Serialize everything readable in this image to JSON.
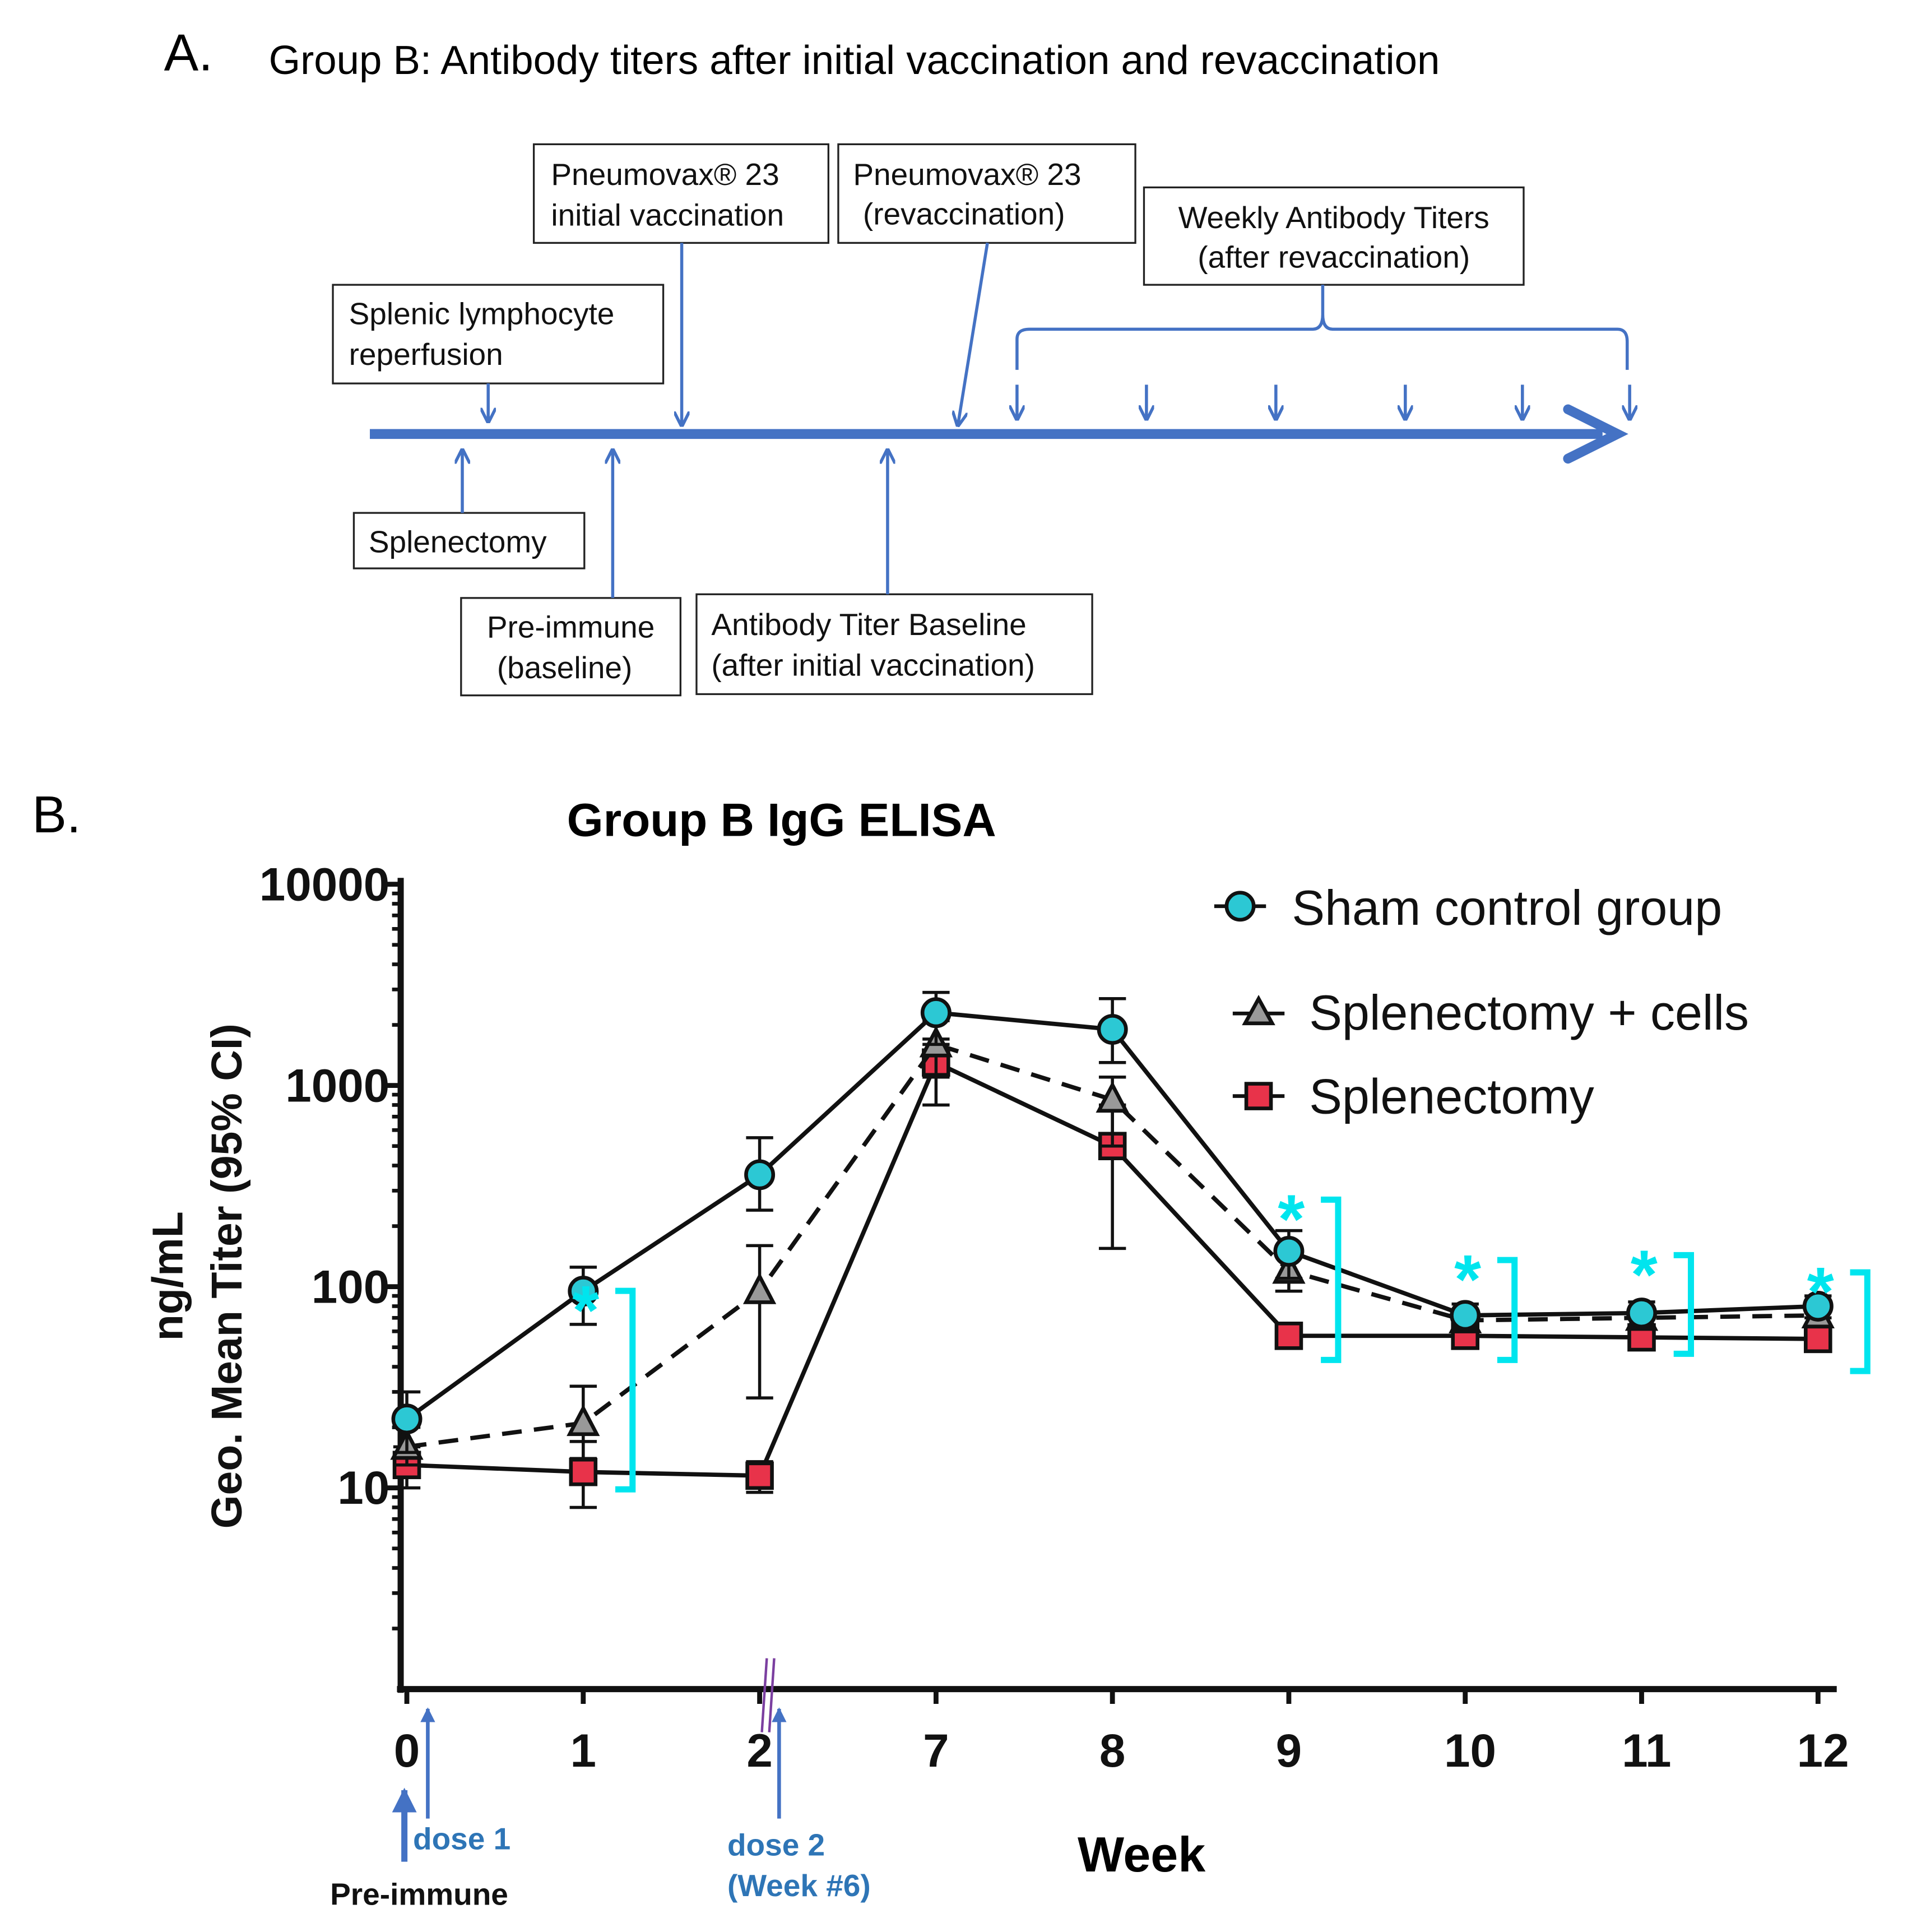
{
  "panel_a": {
    "label": "A.",
    "title": "Group B: Antibody titers after initial vaccination and revaccination",
    "boxes": {
      "initial_vacc": [
        "Pneumovax® 23",
        "initial vaccination"
      ],
      "revacc": [
        "Pneumovax® 23",
        "(revaccination)"
      ],
      "weekly": [
        "Weekly Antibody Titers",
        "(after revaccination)"
      ],
      "reperfusion": [
        "Splenic lymphocyte",
        "reperfusion"
      ],
      "splenectomy": [
        "Splenectomy"
      ],
      "preimmune": [
        "Pre-immune",
        "(baseline)"
      ],
      "baseline": [
        "Antibody Titer Baseline",
        "(after initial vaccination)"
      ]
    },
    "accent": "#4472C4"
  },
  "chart_data": {
    "type": "line",
    "panel_label": "B.",
    "title": "Group B IgG ELISA",
    "xlabel": "Week",
    "ylabel": [
      "ng/mL",
      "Geo. Mean Titer (95% CI)"
    ],
    "yscale": "log",
    "ylim": [
      1,
      10000
    ],
    "yticks": [
      "10",
      "100",
      "1000",
      "10000"
    ],
    "yticks_values": [
      10,
      100,
      1000,
      10000
    ],
    "categories": [
      "0",
      "1",
      "2",
      "7",
      "8",
      "9",
      "10",
      "11",
      "12"
    ],
    "axis_break": "between 2 and 7",
    "legend_position": "top-right",
    "series": [
      {
        "name": "Sham control group",
        "marker": "circle",
        "dash": "solid",
        "color": "#2CC8D4",
        "values": [
          22,
          95,
          360,
          2300,
          1900,
          150,
          72,
          74,
          80
        ],
        "ci_low": [
          15,
          65,
          240,
          1600,
          1300,
          110,
          62,
          64,
          70
        ],
        "ci_high": [
          30,
          125,
          550,
          2900,
          2700,
          190,
          82,
          84,
          90
        ]
      },
      {
        "name": "Splenectomy + cells",
        "marker": "triangle",
        "dash": "dashed",
        "color": "#999999",
        "values": [
          16,
          21,
          95,
          1600,
          850,
          120,
          68,
          70,
          72
        ],
        "ci_low": [
          13,
          14,
          28,
          1100,
          500,
          95,
          60,
          62,
          64
        ],
        "ci_high": [
          20,
          32,
          160,
          2100,
          1100,
          150,
          76,
          78,
          80
        ]
      },
      {
        "name": "Splenectomy",
        "marker": "square",
        "dash": "solid",
        "color": "#E8334A",
        "values": [
          13,
          12,
          11.5,
          1300,
          500,
          57,
          57,
          56,
          55
        ],
        "ci_low": [
          10,
          8,
          9.5,
          800,
          155,
          50,
          50,
          49,
          48
        ],
        "ci_high": [
          16,
          17,
          13.5,
          1700,
          800,
          64,
          64,
          63,
          62
        ]
      }
    ],
    "significance": {
      "symbol": "*",
      "weeks": [
        "1",
        "9",
        "10",
        "11",
        "12"
      ],
      "color": "#00E5EE"
    },
    "annotations": {
      "preimmune": "Pre-immune",
      "dose1": "dose 1",
      "dose2": [
        "dose 2",
        "(Week #6)"
      ]
    }
  }
}
